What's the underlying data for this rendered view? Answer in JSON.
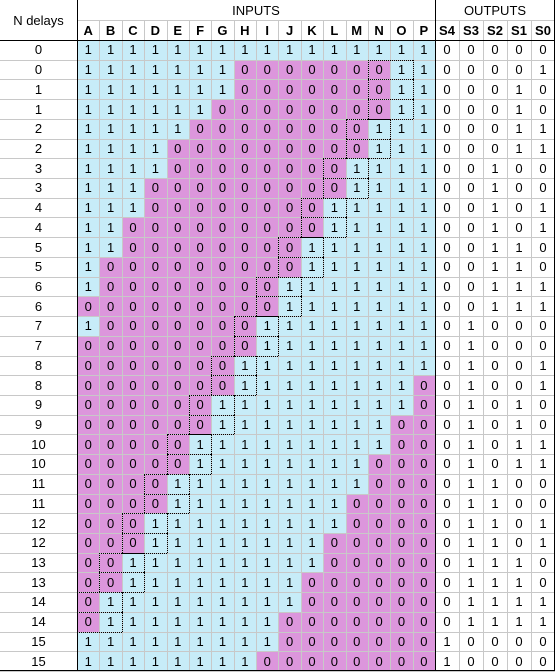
{
  "headers": {
    "n_delays": "N delays",
    "inputs": "INPUTS",
    "outputs": "OUTPUTS",
    "input_cols": [
      "A",
      "B",
      "C",
      "D",
      "E",
      "F",
      "G",
      "H",
      "I",
      "J",
      "K",
      "L",
      "M",
      "N",
      "O",
      "P"
    ],
    "output_cols": [
      "S4",
      "S3",
      "S2",
      "S1",
      "S0"
    ]
  },
  "colors": {
    "cyan": "#c7ecf8",
    "magenta": "#dc96dc"
  },
  "rows": [
    {
      "n": "0",
      "inputs": "1111111111111111",
      "outputs": "00000"
    },
    {
      "n": "0",
      "inputs": "1111111000000011",
      "outputs": "00001"
    },
    {
      "n": "1",
      "inputs": "1111111000000011",
      "outputs": "00010"
    },
    {
      "n": "1",
      "inputs": "1111110000000011",
      "outputs": "00010"
    },
    {
      "n": "2",
      "inputs": "1111100000000111",
      "outputs": "00011"
    },
    {
      "n": "2",
      "inputs": "1111000000000111",
      "outputs": "00011"
    },
    {
      "n": "3",
      "inputs": "1111000000001111",
      "outputs": "00100"
    },
    {
      "n": "3",
      "inputs": "1110000000001111",
      "outputs": "00100"
    },
    {
      "n": "4",
      "inputs": "1110000000011111",
      "outputs": "00101"
    },
    {
      "n": "4",
      "inputs": "1100000000011111",
      "outputs": "00101"
    },
    {
      "n": "5",
      "inputs": "1100000000111111",
      "outputs": "00110"
    },
    {
      "n": "5",
      "inputs": "1000000000111111",
      "outputs": "00110"
    },
    {
      "n": "6",
      "inputs": "1000000001111111",
      "outputs": "00111"
    },
    {
      "n": "6",
      "inputs": "0000000001111111",
      "outputs": "00111"
    },
    {
      "n": "7",
      "inputs": "1000000011111111",
      "outputs": "01000"
    },
    {
      "n": "7",
      "inputs": "0000000011111111",
      "outputs": "01000"
    },
    {
      "n": "8",
      "inputs": "0000000111111111",
      "outputs": "01001"
    },
    {
      "n": "8",
      "inputs": "0000000111111110",
      "outputs": "01001"
    },
    {
      "n": "9",
      "inputs": "0000001111111110",
      "outputs": "01010"
    },
    {
      "n": "9",
      "inputs": "0000001111111100",
      "outputs": "01010"
    },
    {
      "n": "10",
      "inputs": "0000011111111100",
      "outputs": "01011"
    },
    {
      "n": "10",
      "inputs": "0000011111111000",
      "outputs": "01011"
    },
    {
      "n": "11",
      "inputs": "0000111111111000",
      "outputs": "01100"
    },
    {
      "n": "11",
      "inputs": "0000111111110000",
      "outputs": "01100"
    },
    {
      "n": "12",
      "inputs": "0001111111110000",
      "outputs": "01101"
    },
    {
      "n": "12",
      "inputs": "0001111111100000",
      "outputs": "01101"
    },
    {
      "n": "13",
      "inputs": "0011111111100000",
      "outputs": "01110"
    },
    {
      "n": "13",
      "inputs": "0011111111000000",
      "outputs": "01110"
    },
    {
      "n": "14",
      "inputs": "0111111111000000",
      "outputs": "01111"
    },
    {
      "n": "14",
      "inputs": "0111111110000000",
      "outputs": "01111"
    },
    {
      "n": "15",
      "inputs": "1111111110000000",
      "outputs": "10000"
    },
    {
      "n": "15",
      "inputs": "1111111100000000",
      "outputs": "10000"
    }
  ]
}
